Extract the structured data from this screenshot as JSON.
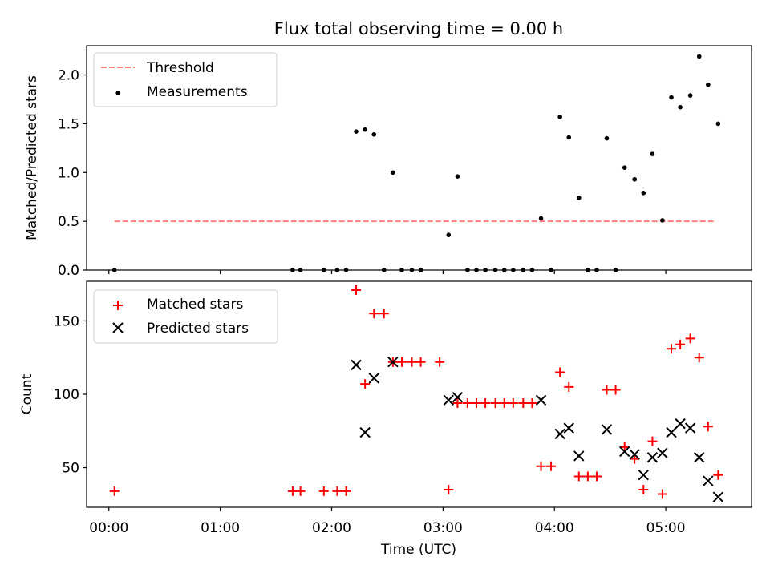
{
  "title": "Flux total observing time = 0.00 h",
  "colors": {
    "threshold": "#ff7f7f",
    "matched": "#ff0000",
    "predicted": "#000000",
    "measurement": "#000000"
  },
  "chart_data": [
    {
      "type": "scatter",
      "panel": "top",
      "title": "Flux total observing time = 0.00 h",
      "ylabel": "Matched/Predicted stars",
      "xlabel": "",
      "xlim": [
        -0.2,
        5.77
      ],
      "ylim": [
        0,
        2.3
      ],
      "yticks": [
        0.0,
        0.5,
        1.0,
        1.5,
        2.0
      ],
      "ytick_labels": [
        "0.0",
        "0.5",
        "1.0",
        "1.5",
        "2.0"
      ],
      "legend_position": "upper-left",
      "legend": [
        "Threshold",
        "Measurements"
      ],
      "threshold": {
        "name": "Threshold",
        "y": 0.5,
        "x_range": [
          0.05,
          5.45
        ]
      },
      "series": [
        {
          "name": "Measurements",
          "x": [
            0.05,
            1.65,
            1.72,
            1.93,
            2.05,
            2.13,
            2.22,
            2.3,
            2.38,
            2.47,
            2.55,
            2.63,
            2.72,
            2.8,
            3.05,
            3.13,
            3.22,
            3.3,
            3.38,
            3.47,
            3.55,
            3.63,
            3.72,
            3.8,
            3.88,
            3.97,
            4.05,
            4.13,
            4.22,
            4.3,
            4.38,
            4.47,
            4.55,
            4.63,
            4.72,
            4.8,
            4.88,
            4.97,
            5.05,
            5.13,
            5.22,
            5.3,
            5.38,
            5.47
          ],
          "y": [
            0.0,
            0.0,
            0.0,
            0.0,
            0.0,
            0.0,
            1.42,
            1.44,
            1.39,
            0.0,
            1.0,
            0.0,
            0.0,
            0.0,
            0.36,
            0.96,
            0.0,
            0.0,
            0.0,
            0.0,
            0.0,
            0.0,
            0.0,
            0.0,
            0.53,
            0.0,
            1.57,
            1.36,
            0.74,
            0.0,
            0.0,
            1.35,
            0.0,
            1.05,
            0.93,
            0.79,
            1.19,
            0.51,
            1.77,
            1.67,
            1.79,
            2.19,
            1.9,
            1.5
          ]
        }
      ]
    },
    {
      "type": "scatter",
      "panel": "bottom",
      "xlabel": "Time (UTC)",
      "ylabel": "Count",
      "xlim": [
        -0.2,
        5.77
      ],
      "ylim": [
        23,
        177
      ],
      "xticks": [
        0,
        1,
        2,
        3,
        4,
        5
      ],
      "xtick_labels": [
        "00:00",
        "01:00",
        "02:00",
        "03:00",
        "04:00",
        "05:00"
      ],
      "yticks": [
        50,
        100,
        150
      ],
      "ytick_labels": [
        "50",
        "100",
        "150"
      ],
      "legend_position": "upper-left",
      "legend": [
        "Matched stars",
        "Predicted stars"
      ],
      "series": [
        {
          "name": "Matched stars",
          "marker": "+",
          "x": [
            0.05,
            1.65,
            1.72,
            1.93,
            2.05,
            2.13,
            2.22,
            2.3,
            2.38,
            2.47,
            2.55,
            2.63,
            2.72,
            2.8,
            2.97,
            3.05,
            3.13,
            3.22,
            3.3,
            3.38,
            3.47,
            3.55,
            3.63,
            3.72,
            3.8,
            3.88,
            3.97,
            4.05,
            4.13,
            4.22,
            4.3,
            4.38,
            4.47,
            4.55,
            4.63,
            4.72,
            4.8,
            4.88,
            4.97,
            5.05,
            5.13,
            5.22,
            5.3,
            5.38,
            5.47
          ],
          "y": [
            34,
            34,
            34,
            34,
            34,
            34,
            171,
            107,
            155,
            155,
            122,
            122,
            122,
            122,
            122,
            35,
            94,
            94,
            94,
            94,
            94,
            94,
            94,
            94,
            94,
            51,
            51,
            115,
            105,
            44,
            44,
            44,
            103,
            103,
            64,
            56,
            35,
            68,
            32,
            131,
            134,
            138,
            125,
            78,
            45
          ]
        },
        {
          "name": "Predicted stars",
          "marker": "x",
          "x": [
            2.22,
            2.3,
            2.38,
            2.55,
            3.05,
            3.13,
            3.88,
            4.05,
            4.13,
            4.22,
            4.47,
            4.63,
            4.72,
            4.8,
            4.88,
            4.97,
            5.05,
            5.13,
            5.22,
            5.3,
            5.38,
            5.47
          ],
          "y": [
            120,
            74,
            111,
            122,
            96,
            98,
            96,
            73,
            77,
            58,
            76,
            61,
            59,
            45,
            57,
            60,
            74,
            80,
            77,
            57,
            41,
            30
          ]
        }
      ]
    }
  ]
}
